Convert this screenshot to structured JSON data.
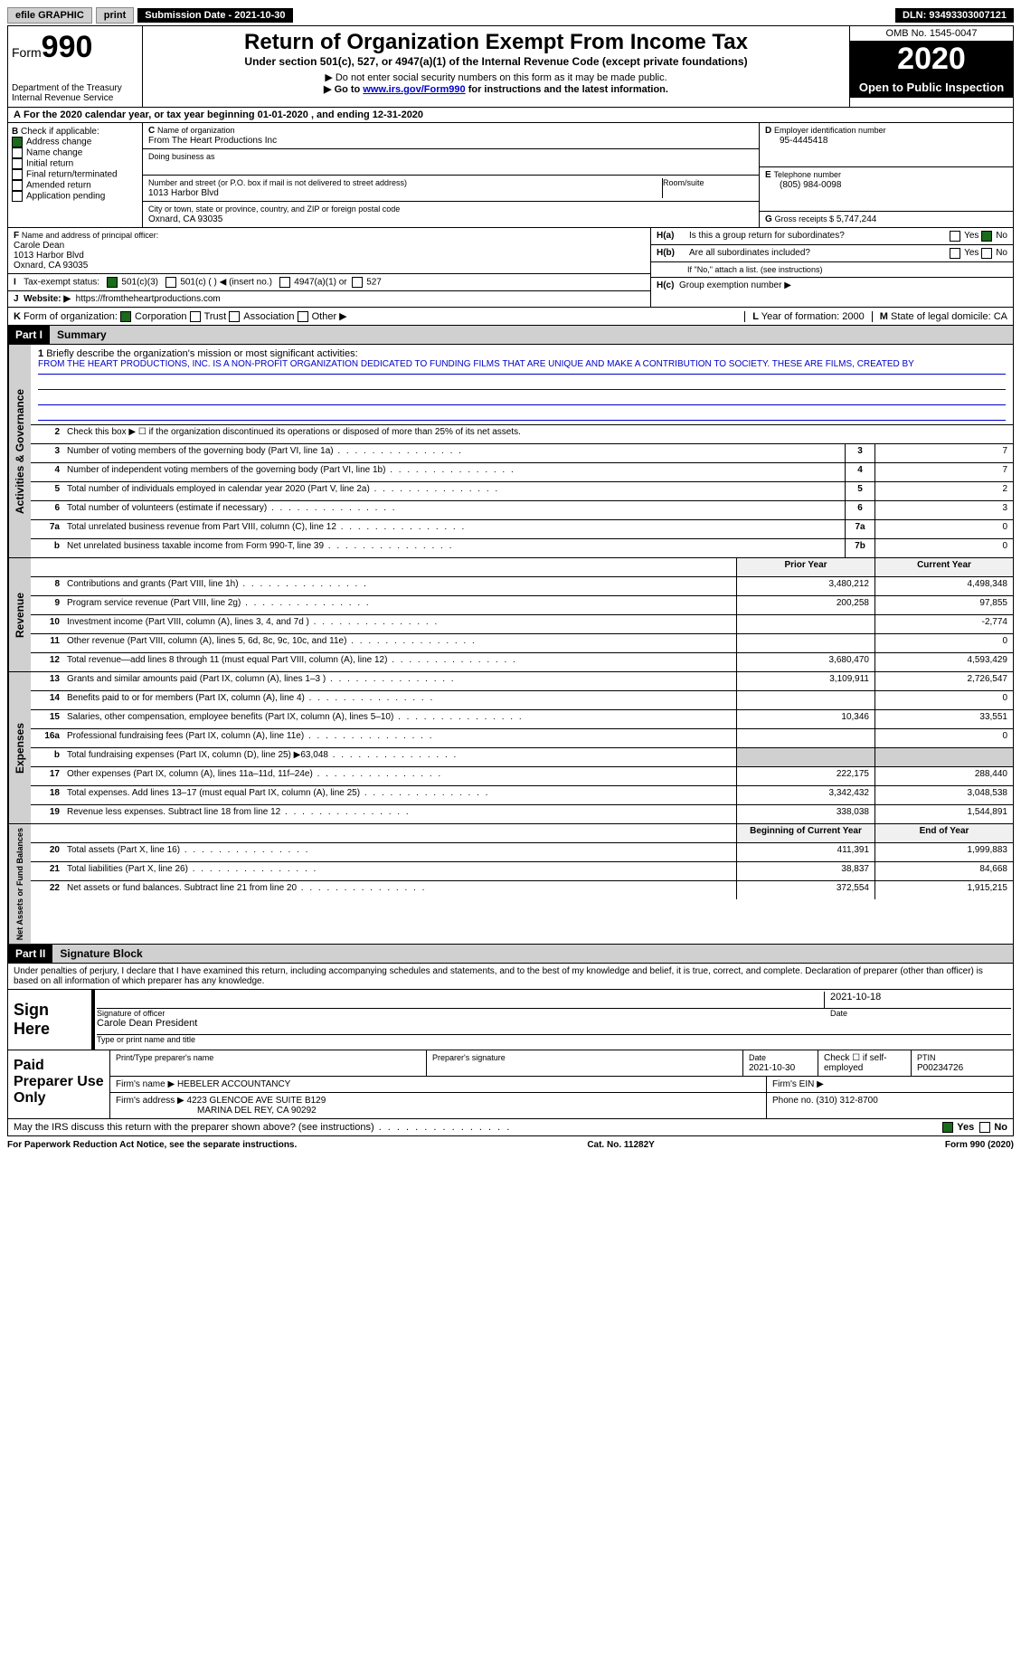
{
  "topbar": {
    "efile": "efile GRAPHIC",
    "print": "print",
    "sub_label": "Submission Date - 2021-10-30",
    "dln": "DLN: 93493303007121"
  },
  "header": {
    "form_prefix": "Form",
    "form_num": "990",
    "dept": "Department of the Treasury",
    "irs": "Internal Revenue Service",
    "title": "Return of Organization Exempt From Income Tax",
    "subtitle": "Under section 501(c), 527, or 4947(a)(1) of the Internal Revenue Code (except private foundations)",
    "note1": "Do not enter social security numbers on this form as it may be made public.",
    "note2_pre": "Go to ",
    "note2_link": "www.irs.gov/Form990",
    "note2_post": " for instructions and the latest information.",
    "omb": "OMB No. 1545-0047",
    "year": "2020",
    "open": "Open to Public Inspection"
  },
  "lineA": "For the 2020 calendar year, or tax year beginning 01-01-2020  , and ending 12-31-2020",
  "boxB": {
    "label": "Check if applicable:",
    "addr_change": "Address change",
    "name_change": "Name change",
    "initial": "Initial return",
    "final": "Final return/terminated",
    "amended": "Amended return",
    "app_pending": "Application pending"
  },
  "boxC": {
    "name_label": "Name of organization",
    "name": "From The Heart Productions Inc",
    "dba_label": "Doing business as",
    "addr_label": "Number and street (or P.O. box if mail is not delivered to street address)",
    "room_label": "Room/suite",
    "addr": "1013 Harbor Blvd",
    "city_label": "City or town, state or province, country, and ZIP or foreign postal code",
    "city": "Oxnard, CA  93035"
  },
  "boxD": {
    "label": "Employer identification number",
    "val": "95-4445418"
  },
  "boxE": {
    "label": "Telephone number",
    "val": "(805) 984-0098"
  },
  "boxG": {
    "label": "Gross receipts $",
    "val": "5,747,244"
  },
  "boxF": {
    "label": "Name and address of principal officer:",
    "name": "Carole Dean",
    "addr1": "1013 Harbor Blvd",
    "addr2": "Oxnard, CA  93035"
  },
  "boxH": {
    "a": "Is this a group return for subordinates?",
    "b": "Are all subordinates included?",
    "b_note": "If \"No,\" attach a list. (see instructions)",
    "c": "Group exemption number ▶",
    "yes": "Yes",
    "no": "No"
  },
  "boxI": {
    "label": "Tax-exempt status:",
    "o1": "501(c)(3)",
    "o2": "501(c) (  ) ◀ (insert no.)",
    "o3": "4947(a)(1) or",
    "o4": "527"
  },
  "boxJ": {
    "label": "Website: ▶",
    "val": "https://fromtheheartproductions.com"
  },
  "boxK": {
    "label": "Form of organization:",
    "corp": "Corporation",
    "trust": "Trust",
    "assoc": "Association",
    "other": "Other ▶"
  },
  "boxL": {
    "label": "Year of formation:",
    "val": "2000"
  },
  "boxM": {
    "label": "State of legal domicile:",
    "val": "CA"
  },
  "part1": {
    "num": "Part I",
    "title": "Summary"
  },
  "brief": {
    "num": "1",
    "label": "Briefly describe the organization's mission or most significant activities:",
    "text": "FROM THE HEART PRODUCTIONS, INC. IS A NON-PROFIT ORGANIZATION DEDICATED TO FUNDING FILMS THAT ARE UNIQUE AND MAKE A CONTRIBUTION TO SOCIETY. THESE ARE FILMS, CREATED BY"
  },
  "line2": "Check this box ▶ ☐ if the organization discontinued its operations or disposed of more than 25% of its net assets.",
  "sideA": "Activities & Governance",
  "sideR": "Revenue",
  "sideE": "Expenses",
  "sideN": "Net Assets or Fund Balances",
  "rows_gov": [
    {
      "n": "3",
      "d": "Number of voting members of the governing body (Part VI, line 1a)",
      "box": "3",
      "v": "7"
    },
    {
      "n": "4",
      "d": "Number of independent voting members of the governing body (Part VI, line 1b)",
      "box": "4",
      "v": "7"
    },
    {
      "n": "5",
      "d": "Total number of individuals employed in calendar year 2020 (Part V, line 2a)",
      "box": "5",
      "v": "2"
    },
    {
      "n": "6",
      "d": "Total number of volunteers (estimate if necessary)",
      "box": "6",
      "v": "3"
    },
    {
      "n": "7a",
      "d": "Total unrelated business revenue from Part VIII, column (C), line 12",
      "box": "7a",
      "v": "0"
    },
    {
      "n": "b",
      "d": "Net unrelated business taxable income from Form 990-T, line 39",
      "box": "7b",
      "v": "0"
    }
  ],
  "col_hdr": {
    "py": "Prior Year",
    "cy": "Current Year",
    "bcy": "Beginning of Current Year",
    "eoy": "End of Year"
  },
  "rows_rev": [
    {
      "n": "8",
      "d": "Contributions and grants (Part VIII, line 1h)",
      "py": "3,480,212",
      "cy": "4,498,348"
    },
    {
      "n": "9",
      "d": "Program service revenue (Part VIII, line 2g)",
      "py": "200,258",
      "cy": "97,855"
    },
    {
      "n": "10",
      "d": "Investment income (Part VIII, column (A), lines 3, 4, and 7d )",
      "py": "",
      "cy": "-2,774"
    },
    {
      "n": "11",
      "d": "Other revenue (Part VIII, column (A), lines 5, 6d, 8c, 9c, 10c, and 11e)",
      "py": "",
      "cy": "0"
    },
    {
      "n": "12",
      "d": "Total revenue—add lines 8 through 11 (must equal Part VIII, column (A), line 12)",
      "py": "3,680,470",
      "cy": "4,593,429"
    }
  ],
  "rows_exp": [
    {
      "n": "13",
      "d": "Grants and similar amounts paid (Part IX, column (A), lines 1–3 )",
      "py": "3,109,911",
      "cy": "2,726,547"
    },
    {
      "n": "14",
      "d": "Benefits paid to or for members (Part IX, column (A), line 4)",
      "py": "",
      "cy": "0"
    },
    {
      "n": "15",
      "d": "Salaries, other compensation, employee benefits (Part IX, column (A), lines 5–10)",
      "py": "10,346",
      "cy": "33,551"
    },
    {
      "n": "16a",
      "d": "Professional fundraising fees (Part IX, column (A), line 11e)",
      "py": "",
      "cy": "0"
    },
    {
      "n": "b",
      "d": "Total fundraising expenses (Part IX, column (D), line 25) ▶63,048",
      "py": "shade",
      "cy": "shade"
    },
    {
      "n": "17",
      "d": "Other expenses (Part IX, column (A), lines 11a–11d, 11f–24e)",
      "py": "222,175",
      "cy": "288,440"
    },
    {
      "n": "18",
      "d": "Total expenses. Add lines 13–17 (must equal Part IX, column (A), line 25)",
      "py": "3,342,432",
      "cy": "3,048,538"
    },
    {
      "n": "19",
      "d": "Revenue less expenses. Subtract line 18 from line 12",
      "py": "338,038",
      "cy": "1,544,891"
    }
  ],
  "rows_net": [
    {
      "n": "20",
      "d": "Total assets (Part X, line 16)",
      "py": "411,391",
      "cy": "1,999,883"
    },
    {
      "n": "21",
      "d": "Total liabilities (Part X, line 26)",
      "py": "38,837",
      "cy": "84,668"
    },
    {
      "n": "22",
      "d": "Net assets or fund balances. Subtract line 21 from line 20",
      "py": "372,554",
      "cy": "1,915,215"
    }
  ],
  "part2": {
    "num": "Part II",
    "title": "Signature Block"
  },
  "sigtext": "Under penalties of perjury, I declare that I have examined this return, including accompanying schedules and statements, and to the best of my knowledge and belief, it is true, correct, and complete. Declaration of preparer (other than officer) is based on all information of which preparer has any knowledge.",
  "sign": {
    "here": "Sign Here",
    "sig_label": "Signature of officer",
    "date_label": "Date",
    "date": "2021-10-18",
    "name": "Carole Dean  President",
    "name_label": "Type or print name and title"
  },
  "paid": {
    "label": "Paid Preparer Use Only",
    "h1": "Print/Type preparer's name",
    "h2": "Preparer's signature",
    "h3": "Date",
    "date": "2021-10-30",
    "h4": "Check ☐ if self-employed",
    "h5": "PTIN",
    "ptin": "P00234726",
    "firm_label": "Firm's name  ▶",
    "firm": "HEBELER ACCOUNTANCY",
    "ein_label": "Firm's EIN ▶",
    "addr_label": "Firm's address ▶",
    "addr": "4223 GLENCOE AVE SUITE B129",
    "addr2": "MARINA DEL REY, CA  90292",
    "phone_label": "Phone no.",
    "phone": "(310) 312-8700"
  },
  "discuss": "May the IRS discuss this return with the preparer shown above? (see instructions)",
  "footer": {
    "left": "For Paperwork Reduction Act Notice, see the separate instructions.",
    "mid": "Cat. No. 11282Y",
    "right": "Form 990 (2020)"
  }
}
